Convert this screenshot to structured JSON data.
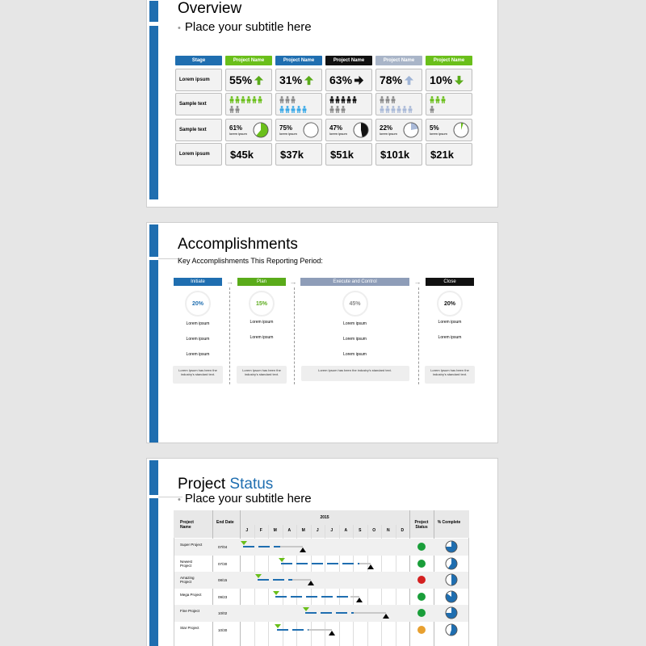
{
  "slide1": {
    "title": "Overview",
    "subtitle": "Place your subtitle here",
    "headers": [
      {
        "label": "Stage",
        "color": "#1f6eb0"
      },
      {
        "label": "Project Name",
        "color": "#6abf1a"
      },
      {
        "label": "Project Name",
        "color": "#1f6eb0"
      },
      {
        "label": "Project Name",
        "color": "#111111"
      },
      {
        "label": "Project Name",
        "color": "#a9b5c8"
      },
      {
        "label": "Project Name",
        "color": "#6abf1a"
      }
    ],
    "row_labels": [
      "Lorem ipsum",
      "Sample text",
      "Sample text",
      "Lorem ipsum"
    ],
    "percents": [
      {
        "value": "55%",
        "trend": "up",
        "color": "#5aab1a"
      },
      {
        "value": "31%",
        "trend": "up",
        "color": "#5aab1a"
      },
      {
        "value": "63%",
        "trend": "right",
        "color": "#111111"
      },
      {
        "value": "78%",
        "trend": "up",
        "color": "#9fb4d6"
      },
      {
        "value": "10%",
        "trend": "down",
        "color": "#5aab1a"
      }
    ],
    "people": [
      {
        "top": 6,
        "bottom": 2,
        "top_color": "#6abf1a",
        "bottom_color": "#888888"
      },
      {
        "top": 3,
        "bottom": 5,
        "top_color": "#888888",
        "bottom_color": "#3aa9e8"
      },
      {
        "top": 5,
        "bottom": 3,
        "top_color": "#111111",
        "bottom_color": "#888888"
      },
      {
        "top": 3,
        "bottom": 6,
        "top_color": "#888888",
        "bottom_color": "#a9b9d8"
      },
      {
        "top": 3,
        "bottom": 1,
        "top_color": "#6abf1a",
        "bottom_color": "#888888"
      }
    ],
    "pies": [
      {
        "value": "61%",
        "caption": "lorem ipsum",
        "fraction": 0.61,
        "color": "#6abf1a"
      },
      {
        "value": "75%",
        "caption": "lorem ipsum",
        "fraction": 0.75,
        "color": "#ffffff"
      },
      {
        "value": "47%",
        "caption": "lorem ipsum",
        "fraction": 0.47,
        "color": "#111111"
      },
      {
        "value": "22%",
        "caption": "lorem ipsum",
        "fraction": 0.22,
        "color": "#a9b9d8"
      },
      {
        "value": "5%",
        "caption": "lorem ipsum",
        "fraction": 0.05,
        "color": "#6abf1a"
      }
    ],
    "money": [
      "$45k",
      "$37k",
      "$51k",
      "$101k",
      "$21k"
    ]
  },
  "slide2": {
    "title": "Accomplishments",
    "subtitle": "Key Accomplishments This Reporting Period:",
    "phases": [
      {
        "label": "Initiate",
        "color": "#1f6eb0",
        "pct": "20%",
        "pct_color": "#1f6eb0",
        "items": [
          "Lorem ipsum",
          "Lorem ipsum",
          "Lorem ipsum"
        ],
        "note": "Lorem Ipsum has been the industry's standard text."
      },
      {
        "label": "Plan",
        "color": "#5aab1a",
        "pct": "15%",
        "pct_color": "#5aab1a",
        "items": [
          "Lorem ipsum",
          "Lorem ipsum"
        ],
        "note": "Lorem Ipsum has been the industry's standard text."
      },
      {
        "label": "Execute and Control",
        "color": "#8e9db8",
        "pct": "45%",
        "pct_color": "#888888",
        "items": [
          "Lorem ipsum",
          "Lorem ipsum",
          "Lorem ipsum"
        ],
        "note": "Lorem Ipsum has been the industry's standard text."
      },
      {
        "label": "Close",
        "color": "#111111",
        "pct": "20%",
        "pct_color": "#111111",
        "items": [
          "Lorem ipsum",
          "Lorem ipsum"
        ],
        "note": "Lorem Ipsum has been the industry's standard text."
      }
    ]
  },
  "slide3": {
    "title_a": "Project ",
    "title_b": "Status",
    "subtitle": "Place your subtitle here",
    "col_project": "Project Name",
    "col_end": "End Date",
    "year": "2015",
    "months": [
      "J",
      "F",
      "M",
      "A",
      "M",
      "J",
      "J",
      "A",
      "S",
      "O",
      "N",
      "D"
    ],
    "col_status": "Project Status",
    "col_complete": "% Complete",
    "rows": [
      {
        "name": "Super Project",
        "end": "07/04",
        "status": "#1a9e3a",
        "complete": 0.75
      },
      {
        "name": "Newest Project",
        "end": "07/30",
        "status": "#1a9e3a",
        "complete": 0.6
      },
      {
        "name": "Amazing Project",
        "end": "08/15",
        "status": "#d42020",
        "complete": 0.5
      },
      {
        "name": "Mega Project",
        "end": "09/23",
        "status": "#1a9e3a",
        "complete": 0.85
      },
      {
        "name": "Fine Project",
        "end": "10/02",
        "status": "#1a9e3a",
        "complete": 0.75
      },
      {
        "name": "Star Project",
        "end": "10/30",
        "status": "#e8a030",
        "complete": 0.55
      }
    ]
  }
}
